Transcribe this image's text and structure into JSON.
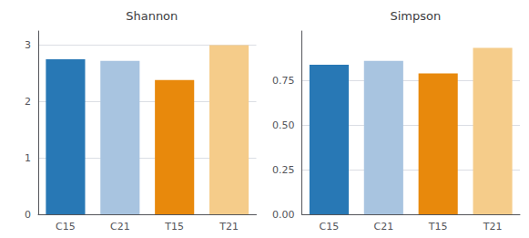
{
  "chart_data": [
    {
      "type": "bar",
      "title": "Shannon",
      "categories": [
        "C15",
        "C21",
        "T15",
        "T21"
      ],
      "values": [
        2.75,
        2.72,
        2.38,
        3.0
      ],
      "colors": [
        "#2878B5",
        "#A8C4E0",
        "#E8890C",
        "#F5CC8A"
      ],
      "ylim": [
        0,
        3.25
      ],
      "yticks": [
        0,
        1,
        2,
        3
      ],
      "grid": true
    },
    {
      "type": "bar",
      "title": "Simpson",
      "categories": [
        "C15",
        "C21",
        "T15",
        "T21"
      ],
      "values": [
        0.84,
        0.862,
        0.792,
        0.935
      ],
      "colors": [
        "#2878B5",
        "#A8C4E0",
        "#E8890C",
        "#F5CC8A"
      ],
      "ylim": [
        0,
        1.03
      ],
      "yticks": [
        {
          "value": 0,
          "label": "0.00"
        },
        0.25,
        {
          "value": 0.5,
          "label": "0.50"
        },
        0.75
      ],
      "grid": true
    }
  ]
}
